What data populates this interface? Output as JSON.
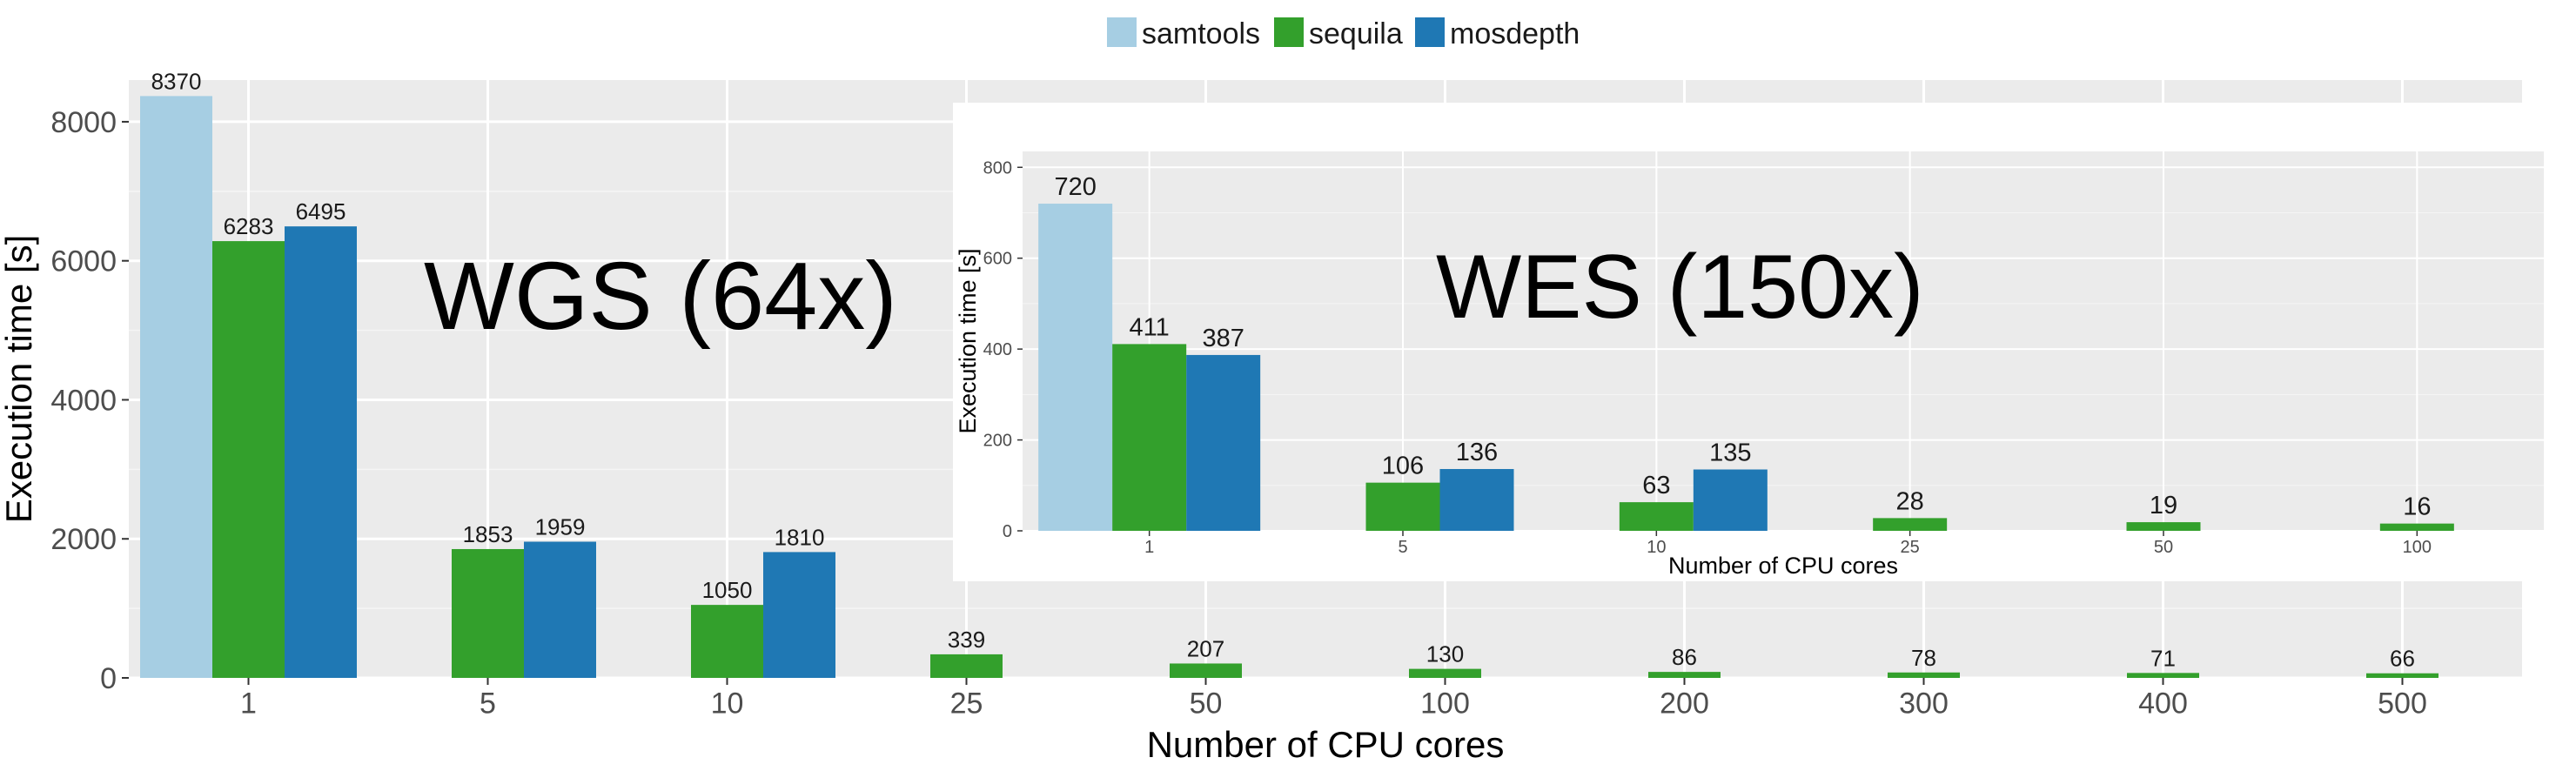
{
  "legend": {
    "position": "top-center",
    "items": [
      {
        "label": "samtools",
        "color": "#a6cee3"
      },
      {
        "label": "sequila",
        "color": "#33a02c"
      },
      {
        "label": "mosdepth",
        "color": "#1f78b4"
      }
    ]
  },
  "chart_data": [
    {
      "type": "bar",
      "annotation": "WGS (64x)",
      "xlabel": "Number of CPU cores",
      "ylabel": "Execution time [s]",
      "ylim": [
        0,
        8600
      ],
      "yticks": [
        0,
        2000,
        4000,
        6000,
        8000
      ],
      "grid": true,
      "categories": [
        "1",
        "5",
        "10",
        "25",
        "50",
        "100",
        "200",
        "300",
        "400",
        "500"
      ],
      "series": [
        {
          "name": "samtools",
          "color": "#a6cee3",
          "values": [
            8370,
            null,
            null,
            null,
            null,
            null,
            null,
            null,
            null,
            null
          ]
        },
        {
          "name": "sequila",
          "color": "#33a02c",
          "values": [
            6283,
            1853,
            1050,
            339,
            207,
            130,
            86,
            78,
            71,
            66
          ]
        },
        {
          "name": "mosdepth",
          "color": "#1f78b4",
          "values": [
            6495,
            1959,
            1810,
            null,
            null,
            null,
            null,
            null,
            null,
            null
          ]
        }
      ]
    },
    {
      "type": "bar",
      "annotation": "WES (150x)",
      "xlabel": "Number of CPU cores",
      "ylabel": "Execution time [s]",
      "ylim": [
        0,
        835
      ],
      "yticks": [
        0,
        200,
        400,
        600,
        800
      ],
      "grid": true,
      "categories": [
        "1",
        "5",
        "10",
        "25",
        "50",
        "100"
      ],
      "series": [
        {
          "name": "samtools",
          "color": "#a6cee3",
          "values": [
            720,
            null,
            null,
            null,
            null,
            null
          ]
        },
        {
          "name": "sequila",
          "color": "#33a02c",
          "values": [
            411,
            106,
            63,
            28,
            19,
            16
          ]
        },
        {
          "name": "mosdepth",
          "color": "#1f78b4",
          "values": [
            387,
            136,
            135,
            null,
            null,
            null
          ]
        }
      ]
    }
  ]
}
